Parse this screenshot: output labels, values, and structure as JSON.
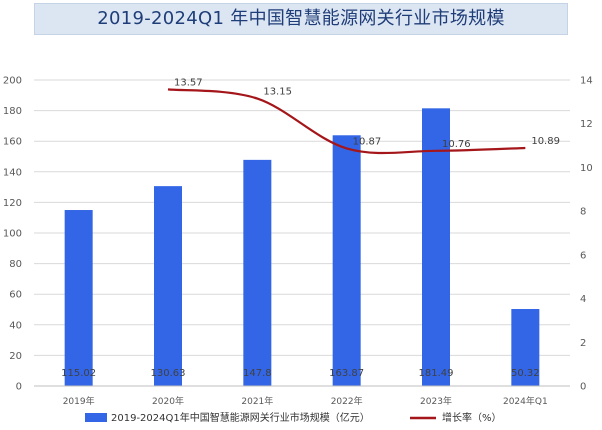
{
  "chart_data": {
    "type": "bar",
    "title": "2019-2024Q1 年中国智慧能源网关行业市场规模",
    "categories": [
      "2019年",
      "2020年",
      "2021年",
      "2022年",
      "2023年",
      "2024年Q1"
    ],
    "series": [
      {
        "name": "2019-2024Q1年中国智慧能源网关行业市场规模（亿元）",
        "type": "bar",
        "axis": "left",
        "color": "#3366e6",
        "values": [
          115.02,
          130.63,
          147.8,
          163.87,
          181.49,
          50.32
        ],
        "labels": [
          "115.02",
          "130.63",
          "147.8",
          "163.87",
          "181.49",
          "50.32"
        ]
      },
      {
        "name": "增长率（%）",
        "type": "line",
        "axis": "right",
        "color": "#a4161a",
        "values": [
          null,
          13.57,
          13.15,
          10.87,
          10.76,
          10.89
        ],
        "labels": [
          "",
          "13.57",
          "13.15",
          "10.87",
          "10.76",
          "10.89"
        ]
      }
    ],
    "ylim_left": [
      0,
      200
    ],
    "yticks_left": [
      0,
      20,
      40,
      60,
      80,
      100,
      120,
      140,
      160,
      180,
      200
    ],
    "ylim_right": [
      0,
      14
    ],
    "yticks_right": [
      0,
      2,
      4,
      6,
      8,
      10,
      12,
      14
    ],
    "grid": true,
    "legend_position": "bottom"
  }
}
